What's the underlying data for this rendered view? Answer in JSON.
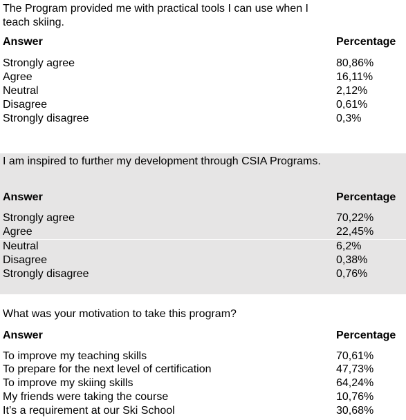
{
  "sections": [
    {
      "question": "The Program provided me with practical tools I can use when I teach skiing.",
      "header": {
        "answer": "Answer",
        "percentage": "Percentage"
      },
      "rows": [
        {
          "answer": "Strongly agree",
          "percentage": "80,86%"
        },
        {
          "answer": "Agree",
          "percentage": "16,11%"
        },
        {
          "answer": "Neutral",
          "percentage": "2,12%"
        },
        {
          "answer": "Disagree",
          "percentage": "0,61%"
        },
        {
          "answer": "Strongly disagree",
          "percentage": "0,3%"
        }
      ]
    },
    {
      "question": "I am inspired to further my development through CSIA Programs.",
      "header": {
        "answer": "Answer",
        "percentage": "Percentage"
      },
      "rows": [
        {
          "answer": "Strongly agree",
          "percentage": "70,22%"
        },
        {
          "answer": "Agree",
          "percentage": "22,45%"
        },
        {
          "answer": "Neutral",
          "percentage": "6,2%"
        },
        {
          "answer": "Disagree",
          "percentage": "0,38%"
        },
        {
          "answer": "Strongly disagree",
          "percentage": "0,76%"
        }
      ]
    },
    {
      "question": "What was your motivation to take this program?",
      "header": {
        "answer": "Answer",
        "percentage": "Percentage"
      },
      "rows": [
        {
          "answer": "To improve my teaching skills",
          "percentage": "70,61%"
        },
        {
          "answer": "To prepare for the next level of certification",
          "percentage": "47,73%"
        },
        {
          "answer": "To improve my skiing skills",
          "percentage": "64,24%"
        },
        {
          "answer": "My friends were taking the course",
          "percentage": "10,76%"
        },
        {
          "answer": "It’s a requirement at our Ski School",
          "percentage": "30,68%"
        }
      ]
    }
  ],
  "colors": {
    "shaded_background": "#e6e5e5",
    "text": "#000000"
  }
}
